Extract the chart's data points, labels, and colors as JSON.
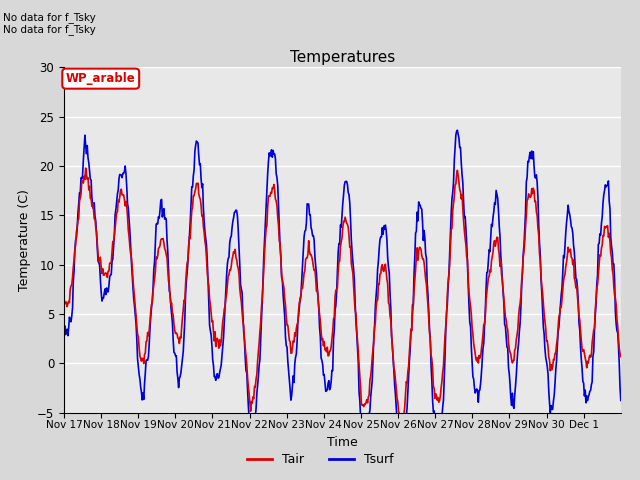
{
  "title": "Temperatures",
  "xlabel": "Time",
  "ylabel": "Temperature (C)",
  "ylim": [
    -5,
    30
  ],
  "yticks": [
    -5,
    0,
    5,
    10,
    15,
    20,
    25,
    30
  ],
  "annotations": [
    "No data for f_Tsky",
    "No data for f_Tsky"
  ],
  "box_label": "WP_arable",
  "legend": [
    {
      "label": "Tair",
      "color": "#dd0000"
    },
    {
      "label": "Tsurf",
      "color": "#0000dd"
    }
  ],
  "background_color": "#d8d8d8",
  "plot_bg_color": "#e8e8e8",
  "grid_color": "#ffffff",
  "tick_labels": [
    "Nov 17",
    "Nov 18",
    "Nov 19",
    "Nov 20",
    "Nov 21",
    "Nov 22",
    "Nov 23",
    "Nov 24",
    "Nov 25",
    "Nov 26",
    "Nov 27",
    "Nov 28",
    "Nov 29",
    "Nov 30",
    "Dec 1"
  ],
  "num_points": 720,
  "seed": 7
}
